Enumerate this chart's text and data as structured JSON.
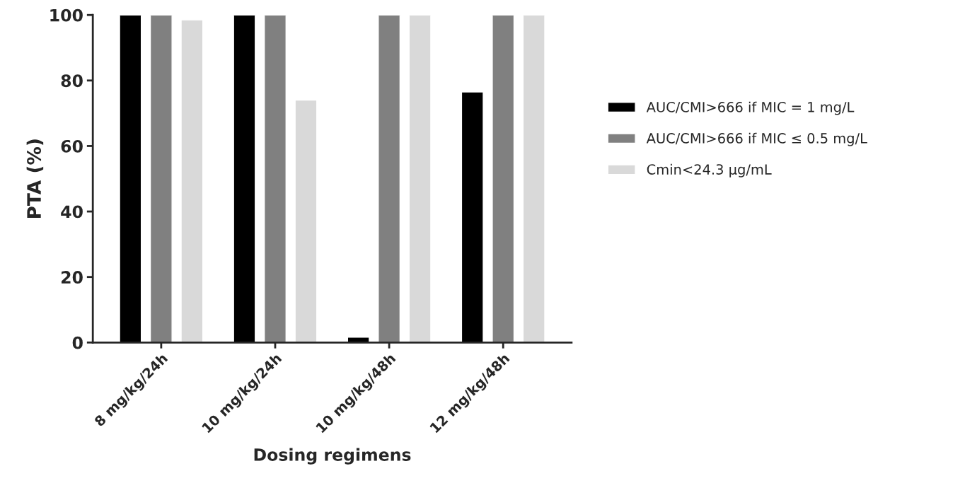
{
  "chart_data": {
    "type": "bar",
    "xlabel": "Dosing regimens",
    "ylabel": "PTA (%)",
    "categories": [
      "8 mg/kg/24h",
      "10 mg/kg/24h",
      "10 mg/kg/48h",
      "12 mg/kg/48h"
    ],
    "series": [
      {
        "name": "AUC/CMI>666 if MIC = 1 mg/L",
        "color": "#000000",
        "values": [
          100,
          100,
          1.6,
          76.5
        ]
      },
      {
        "name": "AUC/CMI>666 if MIC ≤ 0.5 mg/L",
        "color": "#808080",
        "values": [
          100,
          100,
          100,
          100
        ]
      },
      {
        "name": "Cmin<24.3 μg/mL",
        "color": "#d9d9d9",
        "values": [
          98.5,
          74,
          100,
          100
        ]
      }
    ],
    "ylim": [
      0,
      100
    ],
    "yticks": [
      0,
      20,
      40,
      60,
      80,
      100
    ],
    "grid": false,
    "legend": "right"
  }
}
